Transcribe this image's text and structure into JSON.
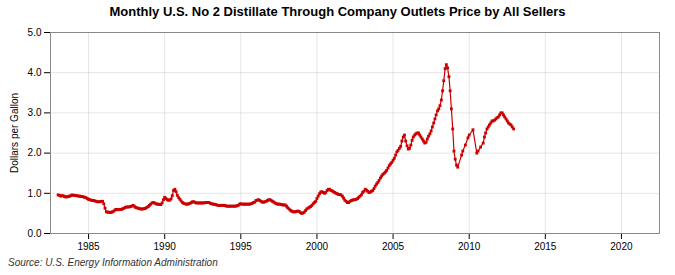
{
  "chart_data": {
    "type": "line",
    "title": "Monthly U.S. No 2 Distillate Through Company Outlets Price by All Sellers",
    "ylabel": "Dollars per Gallon",
    "caption": "Source: U.S. Energy Information Administration",
    "color": "#CC0000",
    "marker": "square",
    "grid": true,
    "xlim": [
      1982.5,
      2022.5
    ],
    "ylim": [
      0.0,
      5.0
    ],
    "xticks": [
      1985,
      1990,
      1995,
      2000,
      2005,
      2010,
      2015,
      2020
    ],
    "yticks": [
      {
        "value": 0.0,
        "label": "0.0"
      },
      {
        "value": 1.0,
        "label": "1.0"
      },
      {
        "value": 2.0,
        "label": "2.0"
      },
      {
        "value": 3.0,
        "label": "3.0"
      },
      {
        "value": 4.0,
        "label": "4.0"
      },
      {
        "value": 5.0,
        "label": "5.0"
      }
    ],
    "x": [
      1983.0,
      1983.08,
      1983.17,
      1983.25,
      1983.33,
      1983.42,
      1983.5,
      1983.58,
      1983.67,
      1983.75,
      1983.83,
      1983.92,
      1984.0,
      1984.08,
      1984.17,
      1984.25,
      1984.33,
      1984.42,
      1984.5,
      1984.58,
      1984.67,
      1984.75,
      1984.83,
      1984.92,
      1985.0,
      1985.08,
      1985.17,
      1985.25,
      1985.33,
      1985.42,
      1985.5,
      1985.58,
      1985.67,
      1985.75,
      1985.83,
      1985.92,
      1986.0,
      1986.08,
      1986.17,
      1986.25,
      1986.33,
      1986.42,
      1986.5,
      1986.58,
      1986.67,
      1986.75,
      1986.83,
      1986.92,
      1987.0,
      1987.08,
      1987.17,
      1987.25,
      1987.33,
      1987.42,
      1987.5,
      1987.58,
      1987.67,
      1987.75,
      1987.83,
      1987.92,
      1988.0,
      1988.08,
      1988.17,
      1988.25,
      1988.33,
      1988.42,
      1988.5,
      1988.58,
      1988.67,
      1988.75,
      1988.83,
      1988.92,
      1989.0,
      1989.08,
      1989.17,
      1989.25,
      1989.33,
      1989.42,
      1989.5,
      1989.58,
      1989.67,
      1989.75,
      1989.83,
      1989.92,
      1990.0,
      1990.08,
      1990.17,
      1990.25,
      1990.33,
      1990.42,
      1990.5,
      1990.58,
      1990.67,
      1990.75,
      1990.83,
      1990.92,
      1991.0,
      1991.08,
      1991.17,
      1991.25,
      1991.33,
      1991.42,
      1991.5,
      1991.58,
      1991.67,
      1991.75,
      1991.83,
      1991.92,
      1992.0,
      1992.08,
      1992.17,
      1992.25,
      1992.33,
      1992.42,
      1992.5,
      1992.58,
      1992.67,
      1992.75,
      1992.83,
      1992.92,
      1993.0,
      1993.08,
      1993.17,
      1993.25,
      1993.33,
      1993.42,
      1993.5,
      1993.58,
      1993.67,
      1993.75,
      1993.83,
      1993.92,
      1994.0,
      1994.08,
      1994.17,
      1994.25,
      1994.33,
      1994.42,
      1994.5,
      1994.58,
      1994.67,
      1994.75,
      1994.83,
      1994.92,
      1995.0,
      1995.08,
      1995.17,
      1995.25,
      1995.33,
      1995.42,
      1995.5,
      1995.58,
      1995.67,
      1995.75,
      1995.83,
      1995.92,
      1996.0,
      1996.08,
      1996.17,
      1996.25,
      1996.33,
      1996.42,
      1996.5,
      1996.58,
      1996.67,
      1996.75,
      1996.83,
      1996.92,
      1997.0,
      1997.08,
      1997.17,
      1997.25,
      1997.33,
      1997.42,
      1997.5,
      1997.58,
      1997.67,
      1997.75,
      1997.83,
      1997.92,
      1998.0,
      1998.08,
      1998.17,
      1998.25,
      1998.33,
      1998.42,
      1998.5,
      1998.58,
      1998.67,
      1998.75,
      1998.83,
      1998.92,
      1999.0,
      1999.08,
      1999.17,
      1999.25,
      1999.33,
      1999.42,
      1999.5,
      1999.58,
      1999.67,
      1999.75,
      1999.83,
      1999.92,
      2000.0,
      2000.08,
      2000.17,
      2000.25,
      2000.33,
      2000.42,
      2000.5,
      2000.58,
      2000.67,
      2000.75,
      2000.83,
      2000.92,
      2001.0,
      2001.08,
      2001.17,
      2001.25,
      2001.33,
      2001.42,
      2001.5,
      2001.58,
      2001.67,
      2001.75,
      2001.83,
      2001.92,
      2002.0,
      2002.08,
      2002.17,
      2002.25,
      2002.33,
      2002.42,
      2002.5,
      2002.58,
      2002.67,
      2002.75,
      2002.83,
      2002.92,
      2003.0,
      2003.08,
      2003.17,
      2003.25,
      2003.33,
      2003.42,
      2003.5,
      2003.58,
      2003.67,
      2003.75,
      2003.83,
      2003.92,
      2004.0,
      2004.08,
      2004.17,
      2004.25,
      2004.33,
      2004.42,
      2004.5,
      2004.58,
      2004.67,
      2004.75,
      2004.83,
      2004.92,
      2005.0,
      2005.08,
      2005.17,
      2005.25,
      2005.33,
      2005.42,
      2005.5,
      2005.58,
      2005.67,
      2005.75,
      2005.83,
      2005.92,
      2006.0,
      2006.08,
      2006.17,
      2006.25,
      2006.33,
      2006.42,
      2006.5,
      2006.58,
      2006.67,
      2006.75,
      2006.83,
      2006.92,
      2007.0,
      2007.08,
      2007.17,
      2007.25,
      2007.33,
      2007.42,
      2007.5,
      2007.58,
      2007.67,
      2007.75,
      2007.83,
      2007.92,
      2008.0,
      2008.08,
      2008.17,
      2008.25,
      2008.33,
      2008.42,
      2008.5,
      2008.58,
      2008.67,
      2008.75,
      2008.83,
      2008.92,
      2009.0,
      2009.08,
      2009.17,
      2009.25,
      2009.5,
      2009.58,
      2009.75,
      2009.92,
      2010.0,
      2010.25,
      2010.5,
      2010.58,
      2010.75,
      2010.92,
      2011.0,
      2011.08,
      2011.17,
      2011.25,
      2011.33,
      2011.42,
      2011.5,
      2011.58,
      2011.67,
      2011.75,
      2011.83,
      2011.92,
      2012.0,
      2012.08,
      2012.17,
      2012.25,
      2012.33,
      2012.42,
      2012.5,
      2012.58,
      2012.67,
      2012.75,
      2012.83,
      2012.92
    ],
    "values": [
      0.96,
      0.95,
      0.93,
      0.94,
      0.94,
      0.92,
      0.91,
      0.91,
      0.92,
      0.93,
      0.94,
      0.96,
      0.95,
      0.95,
      0.94,
      0.94,
      0.93,
      0.93,
      0.92,
      0.92,
      0.91,
      0.9,
      0.89,
      0.87,
      0.85,
      0.84,
      0.83,
      0.82,
      0.82,
      0.81,
      0.8,
      0.79,
      0.79,
      0.79,
      0.8,
      0.8,
      0.74,
      0.63,
      0.54,
      0.53,
      0.53,
      0.52,
      0.53,
      0.54,
      0.56,
      0.59,
      0.6,
      0.59,
      0.6,
      0.6,
      0.6,
      0.62,
      0.63,
      0.65,
      0.66,
      0.66,
      0.66,
      0.67,
      0.68,
      0.7,
      0.68,
      0.65,
      0.64,
      0.63,
      0.62,
      0.61,
      0.61,
      0.61,
      0.62,
      0.63,
      0.65,
      0.67,
      0.7,
      0.73,
      0.76,
      0.77,
      0.76,
      0.74,
      0.73,
      0.73,
      0.72,
      0.72,
      0.76,
      0.84,
      0.9,
      0.87,
      0.84,
      0.83,
      0.83,
      0.86,
      0.94,
      1.07,
      1.1,
      1.04,
      0.95,
      0.89,
      0.85,
      0.81,
      0.77,
      0.75,
      0.74,
      0.73,
      0.73,
      0.74,
      0.75,
      0.77,
      0.79,
      0.79,
      0.77,
      0.76,
      0.76,
      0.76,
      0.76,
      0.76,
      0.76,
      0.76,
      0.77,
      0.77,
      0.77,
      0.77,
      0.75,
      0.74,
      0.73,
      0.73,
      0.72,
      0.71,
      0.7,
      0.7,
      0.7,
      0.7,
      0.7,
      0.7,
      0.69,
      0.68,
      0.68,
      0.68,
      0.68,
      0.68,
      0.68,
      0.68,
      0.68,
      0.69,
      0.7,
      0.73,
      0.74,
      0.73,
      0.73,
      0.73,
      0.73,
      0.73,
      0.73,
      0.73,
      0.74,
      0.75,
      0.77,
      0.78,
      0.82,
      0.83,
      0.84,
      0.82,
      0.8,
      0.78,
      0.78,
      0.79,
      0.8,
      0.82,
      0.84,
      0.84,
      0.82,
      0.8,
      0.78,
      0.76,
      0.74,
      0.73,
      0.73,
      0.73,
      0.72,
      0.71,
      0.71,
      0.71,
      0.68,
      0.64,
      0.61,
      0.58,
      0.56,
      0.54,
      0.54,
      0.54,
      0.55,
      0.56,
      0.55,
      0.52,
      0.5,
      0.51,
      0.53,
      0.57,
      0.61,
      0.63,
      0.65,
      0.67,
      0.7,
      0.74,
      0.77,
      0.8,
      0.87,
      0.93,
      0.99,
      1.03,
      1.04,
      1.02,
      1.0,
      1.02,
      1.07,
      1.1,
      1.1,
      1.07,
      1.06,
      1.04,
      1.02,
      1.0,
      0.99,
      0.97,
      0.97,
      0.96,
      0.93,
      0.88,
      0.83,
      0.8,
      0.77,
      0.77,
      0.8,
      0.82,
      0.83,
      0.84,
      0.84,
      0.85,
      0.87,
      0.9,
      0.93,
      0.96,
      1.02,
      1.05,
      1.1,
      1.08,
      1.05,
      1.02,
      1.03,
      1.05,
      1.07,
      1.12,
      1.18,
      1.23,
      1.27,
      1.32,
      1.38,
      1.43,
      1.47,
      1.5,
      1.53,
      1.57,
      1.63,
      1.69,
      1.73,
      1.77,
      1.82,
      1.87,
      1.95,
      2.03,
      2.07,
      2.12,
      2.17,
      2.3,
      2.4,
      2.45,
      2.3,
      2.18,
      2.1,
      2.12,
      2.2,
      2.32,
      2.4,
      2.45,
      2.48,
      2.5,
      2.5,
      2.45,
      2.4,
      2.35,
      2.3,
      2.25,
      2.27,
      2.35,
      2.42,
      2.48,
      2.55,
      2.65,
      2.75,
      2.85,
      2.95,
      3.05,
      3.1,
      3.18,
      3.32,
      3.55,
      3.8,
      4.1,
      4.2,
      4.12,
      3.9,
      3.55,
      3.1,
      2.6,
      2.05,
      1.85,
      1.7,
      1.65,
      1.95,
      2.05,
      2.2,
      2.38,
      2.45,
      2.58,
      2.0,
      2.05,
      2.15,
      2.25,
      2.4,
      2.5,
      2.6,
      2.65,
      2.7,
      2.75,
      2.8,
      2.8,
      2.82,
      2.85,
      2.88,
      2.9,
      2.95,
      3.0,
      3.0,
      2.95,
      2.9,
      2.85,
      2.8,
      2.75,
      2.72,
      2.7,
      2.65,
      2.6
    ]
  }
}
